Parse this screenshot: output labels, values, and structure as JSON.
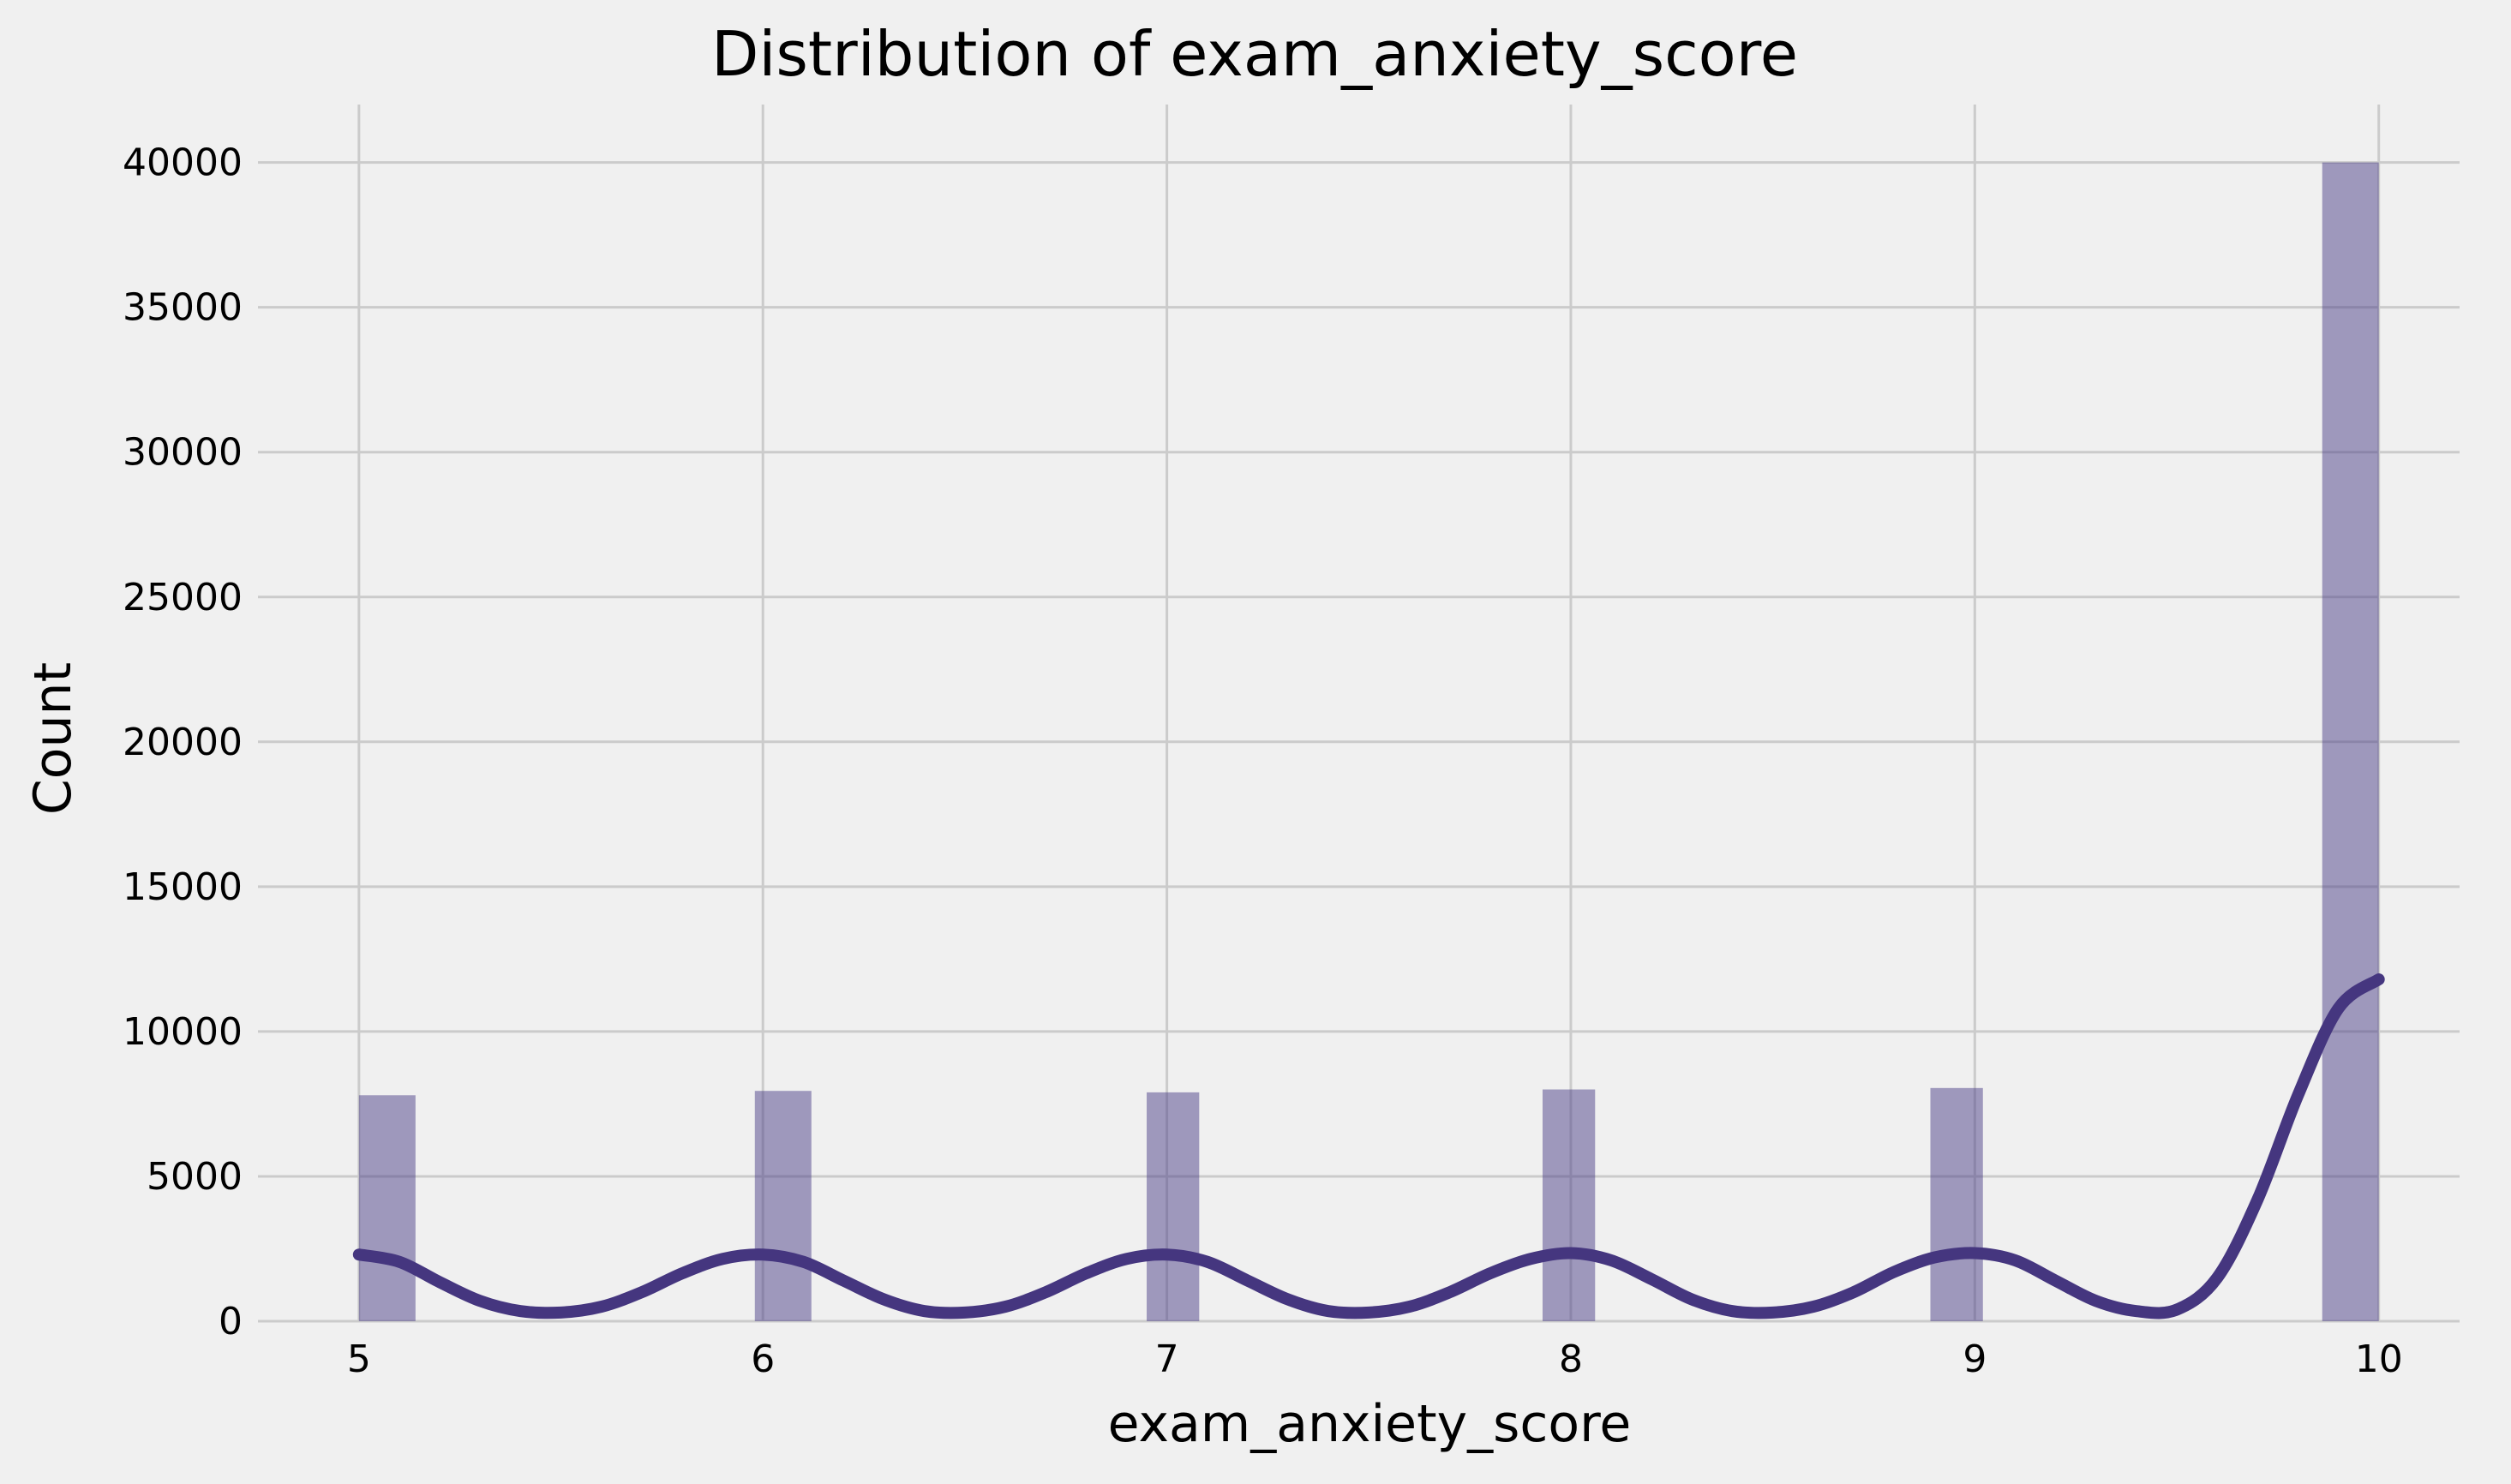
{
  "chart_data": {
    "type": "bar",
    "title": "Distribution of exam_anxiety_score",
    "xlabel": "exam_anxiety_score",
    "ylabel": "Count",
    "xlim": [
      4.75,
      10.2
    ],
    "ylim": [
      0,
      42000
    ],
    "x_ticks": [
      "5",
      "6",
      "7",
      "8",
      "9",
      "10"
    ],
    "y_ticks": [
      "0",
      "5000",
      "10000",
      "15000",
      "20000",
      "25000",
      "30000",
      "35000",
      "40000"
    ],
    "grid": true,
    "bins": [
      {
        "x_start": 5.0,
        "x_end": 5.14,
        "value": 7800
      },
      {
        "x_start": 5.98,
        "x_end": 6.12,
        "value": 7950
      },
      {
        "x_start": 6.95,
        "x_end": 7.08,
        "value": 7900
      },
      {
        "x_start": 7.93,
        "x_end": 8.06,
        "value": 8000
      },
      {
        "x_start": 8.89,
        "x_end": 9.02,
        "value": 8050
      },
      {
        "x_start": 9.86,
        "x_end": 10.0,
        "value": 40000
      }
    ],
    "kde": {
      "x": [
        5.0,
        5.1,
        5.2,
        5.3,
        5.4,
        5.5,
        5.6,
        5.7,
        5.8,
        5.9,
        6.0,
        6.1,
        6.2,
        6.3,
        6.4,
        6.5,
        6.6,
        6.7,
        6.8,
        6.9,
        7.0,
        7.1,
        7.2,
        7.3,
        7.4,
        7.5,
        7.6,
        7.7,
        7.8,
        7.9,
        8.0,
        8.1,
        8.2,
        8.3,
        8.4,
        8.5,
        8.6,
        8.7,
        8.8,
        8.9,
        9.0,
        9.1,
        9.2,
        9.3,
        9.4,
        9.5,
        9.6,
        9.7,
        9.8,
        9.9,
        10.0
      ],
      "y": [
        2300,
        2050,
        1350,
        700,
        350,
        300,
        500,
        1000,
        1650,
        2150,
        2300,
        2050,
        1400,
        750,
        350,
        300,
        500,
        1000,
        1650,
        2150,
        2300,
        2050,
        1400,
        750,
        350,
        300,
        500,
        1000,
        1650,
        2150,
        2350,
        2100,
        1450,
        750,
        350,
        300,
        500,
        1000,
        1700,
        2200,
        2350,
        2100,
        1400,
        700,
        350,
        400,
        1500,
        4200,
        7800,
        10800,
        11800
      ]
    },
    "colors": {
      "bar": "#4b3f88",
      "kde": "#45367f",
      "grid": "#cbcbcb",
      "background": "#f0f0f0"
    }
  }
}
